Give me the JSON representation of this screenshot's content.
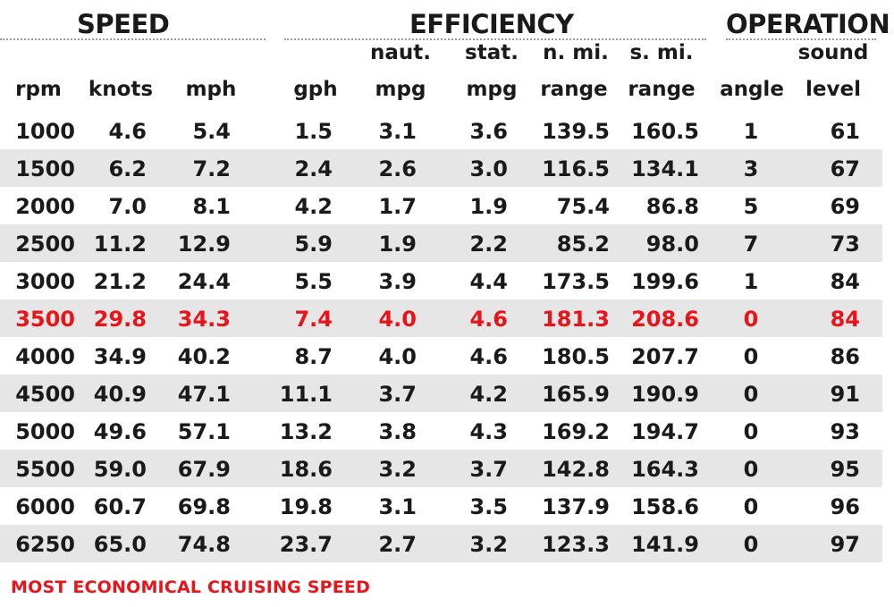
{
  "groups": {
    "speed": "SPEED",
    "efficiency": "EFFICIENCY",
    "operation": "OPERATION"
  },
  "headers": {
    "rpm": {
      "top": "",
      "bottom": "rpm"
    },
    "knots": {
      "top": "",
      "bottom": "knots"
    },
    "mph": {
      "top": "",
      "bottom": "mph"
    },
    "gph": {
      "top": "",
      "bottom": "gph"
    },
    "naut_mpg": {
      "top": "naut.",
      "bottom": "mpg"
    },
    "stat_mpg": {
      "top": "stat.",
      "bottom": "mpg"
    },
    "nmi_range": {
      "top": "n. mi.",
      "bottom": "range"
    },
    "smi_range": {
      "top": "s. mi.",
      "bottom": "range"
    },
    "angle": {
      "top": "",
      "bottom": "angle"
    },
    "sound": {
      "top": "sound",
      "bottom": "level"
    }
  },
  "rows": [
    [
      "1000",
      "4.6",
      "5.4",
      "1.5",
      "3.1",
      "3.6",
      "139.5",
      "160.5",
      "1",
      "61"
    ],
    [
      "1500",
      "6.2",
      "7.2",
      "2.4",
      "2.6",
      "3.0",
      "116.5",
      "134.1",
      "3",
      "67"
    ],
    [
      "2000",
      "7.0",
      "8.1",
      "4.2",
      "1.7",
      "1.9",
      "75.4",
      "86.8",
      "5",
      "69"
    ],
    [
      "2500",
      "11.2",
      "12.9",
      "5.9",
      "1.9",
      "2.2",
      "85.2",
      "98.0",
      "7",
      "73"
    ],
    [
      "3000",
      "21.2",
      "24.4",
      "5.5",
      "3.9",
      "4.4",
      "173.5",
      "199.6",
      "1",
      "84"
    ],
    [
      "3500",
      "29.8",
      "34.3",
      "7.4",
      "4.0",
      "4.6",
      "181.3",
      "208.6",
      "0",
      "84"
    ],
    [
      "4000",
      "34.9",
      "40.2",
      "8.7",
      "4.0",
      "4.6",
      "180.5",
      "207.7",
      "0",
      "86"
    ],
    [
      "4500",
      "40.9",
      "47.1",
      "11.1",
      "3.7",
      "4.2",
      "165.9",
      "190.9",
      "0",
      "91"
    ],
    [
      "5000",
      "49.6",
      "57.1",
      "13.2",
      "3.8",
      "4.3",
      "169.2",
      "194.7",
      "0",
      "93"
    ],
    [
      "5500",
      "59.0",
      "67.9",
      "18.6",
      "3.2",
      "3.7",
      "142.8",
      "164.3",
      "0",
      "95"
    ],
    [
      "6000",
      "60.7",
      "69.8",
      "19.8",
      "3.1",
      "3.5",
      "137.9",
      "158.6",
      "0",
      "96"
    ],
    [
      "6250",
      "65.0",
      "74.8",
      "23.7",
      "2.7",
      "3.2",
      "123.3",
      "141.9",
      "0",
      "97"
    ]
  ],
  "highlight_row_rpm": "3500",
  "footnote": "MOST ECONOMICAL CRUISING SPEED",
  "colors": {
    "highlight": "#e8141c",
    "row_shade": "#e6e6e6",
    "text": "#1a1a1a"
  }
}
